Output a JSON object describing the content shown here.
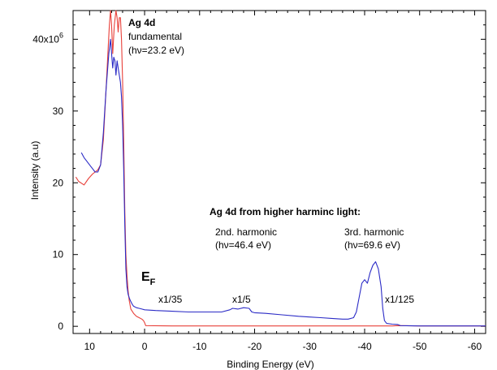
{
  "chart_data": {
    "type": "line",
    "xlabel": "Binding Energy (eV)",
    "ylabel": "Intensity (a.u)",
    "xlim": [
      13,
      -62
    ],
    "ylim": [
      -1,
      44
    ],
    "x_axis_reversed": true,
    "xticks": [
      10,
      0,
      -10,
      -20,
      -30,
      -40,
      -50,
      -60
    ],
    "yticks": [
      0,
      10,
      20,
      30,
      40
    ],
    "ytick_labels": [
      "0",
      "10",
      "20",
      "30",
      "40x10"
    ],
    "ytick_exponent": "6",
    "grid": false,
    "series": [
      {
        "color": "#e8403a",
        "x": [
          12.5,
          12,
          11,
          10.2,
          9.5,
          9,
          8.5,
          8,
          7.5,
          7,
          6.6,
          6.4,
          6.2,
          6,
          5.8,
          5.5,
          5.2,
          5,
          4.8,
          4.6,
          4.4,
          4.2,
          4,
          3.8,
          3.6,
          3.4,
          3.2,
          3,
          2.8,
          2.5,
          2,
          1.5,
          1,
          0.5,
          0.2,
          0,
          -0.2,
          -5,
          -10,
          -15,
          -20,
          -30,
          -40,
          -45,
          -46,
          -50,
          -55,
          -60,
          -62
        ],
        "y": [
          20.8,
          20.2,
          19.7,
          20.6,
          21.2,
          21.5,
          21.8,
          22.5,
          26,
          33,
          39,
          42,
          44,
          42,
          38,
          42,
          44,
          43,
          41,
          43,
          43,
          40,
          34,
          26,
          16,
          10,
          7,
          5,
          3.6,
          2.4,
          1.8,
          1.4,
          1.2,
          1.0,
          0.8,
          0.5,
          0.1,
          0.05,
          0.05,
          0.05,
          0.05,
          0.05,
          0.05,
          0.05,
          0.1,
          0.05,
          0.05,
          0.05,
          0.05
        ]
      },
      {
        "color": "#2b2bc6",
        "x": [
          11.5,
          11,
          10.5,
          10,
          9.5,
          9,
          8.5,
          8,
          7.5,
          7,
          6.5,
          6.2,
          6,
          5.8,
          5.6,
          5.4,
          5.2,
          5,
          4.8,
          4.6,
          4.4,
          4.2,
          4,
          3.8,
          3.6,
          3.4,
          3.2,
          3,
          2.8,
          2.6,
          2.4,
          2.2,
          2,
          1.5,
          1,
          0.5,
          0,
          -2,
          -5,
          -8,
          -10,
          -12,
          -14,
          -15.5,
          -16,
          -17,
          -18,
          -19,
          -19.5,
          -20,
          -22,
          -25,
          -28,
          -30,
          -32,
          -34,
          -36,
          -37,
          -38,
          -38.5,
          -39,
          -39.5,
          -40,
          -40.5,
          -41,
          -41.5,
          -42,
          -42.5,
          -43,
          -43.3,
          -43.6,
          -44,
          -45,
          -46,
          -46.5,
          -50,
          -55,
          -60,
          -62
        ],
        "y": [
          24.2,
          23.5,
          23,
          22.5,
          22,
          21.5,
          21.5,
          22.5,
          27,
          33,
          38,
          40,
          38,
          36,
          37.5,
          37,
          35,
          37,
          36,
          35,
          34,
          32,
          28,
          22,
          14,
          8,
          5.5,
          4.5,
          4.0,
          3.6,
          3.3,
          3.0,
          2.8,
          2.6,
          2.5,
          2.4,
          2.3,
          2.2,
          2.1,
          2.0,
          2.0,
          2.0,
          2.0,
          2.3,
          2.5,
          2.4,
          2.6,
          2.5,
          2.0,
          1.9,
          1.8,
          1.6,
          1.4,
          1.3,
          1.2,
          1.1,
          1.0,
          1.0,
          1.2,
          2.0,
          4.0,
          6.0,
          6.5,
          6.0,
          7.5,
          8.5,
          9.0,
          8.0,
          5.5,
          2.5,
          0.8,
          0.4,
          0.3,
          0.25,
          0.1,
          0.05,
          0.05,
          0.05,
          0.05
        ]
      }
    ],
    "annotations": {
      "top_title": "Ag 4d",
      "top_line2": "fundamental",
      "top_line3": "(hν=23.2 eV)",
      "higher_title": "Ag 4d from higher harminc light:",
      "second_line1": "2nd. harmonic",
      "second_line2": "(hν=46.4 eV)",
      "third_line1": "3rd. harmonic",
      "third_line2": "(hν=69.6 eV)",
      "ef_main": "E",
      "ef_sub": "F",
      "scale_35": "x1/35",
      "scale_5": "x1/5",
      "scale_125": "x1/125"
    }
  }
}
